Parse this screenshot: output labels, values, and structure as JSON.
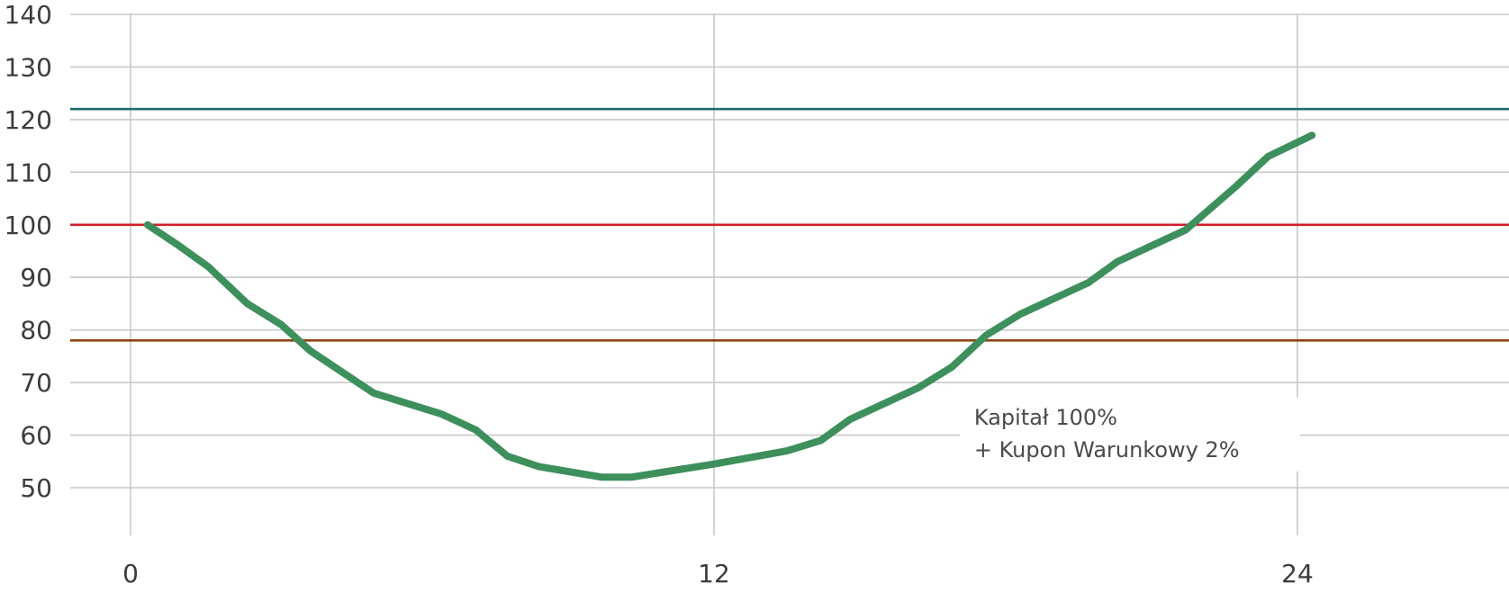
{
  "chart_data": {
    "type": "line",
    "title": "",
    "xlabel": "",
    "ylabel": "",
    "xlim": [
      -1.2,
      28.5
    ],
    "ylim": [
      50,
      140
    ],
    "x_ticks": [
      0,
      12,
      24
    ],
    "y_ticks": [
      50,
      60,
      70,
      80,
      90,
      100,
      110,
      120,
      130,
      140
    ],
    "grid": {
      "horizontal": true,
      "vertical": true
    },
    "reference_lines": [
      {
        "y": 122,
        "color": "#1e6e6a"
      },
      {
        "y": 100,
        "color": "#d0202a"
      },
      {
        "y": 78,
        "color": "#8b4513"
      }
    ],
    "series": [
      {
        "color": "#3d8f5c",
        "x": [
          0.35,
          1.0,
          1.6,
          2.4,
          3.1,
          3.7,
          5.0,
          6.4,
          7.1,
          7.75,
          8.4,
          9.7,
          10.3,
          12.0,
          13.5,
          14.2,
          14.8,
          16.2,
          16.9,
          17.6,
          18.3,
          19.7,
          20.3,
          21.7,
          22.7,
          23.4,
          24.3
        ],
        "y": [
          100,
          96,
          92,
          85,
          81,
          76,
          68,
          64,
          61,
          56,
          54,
          52,
          52,
          54.5,
          57,
          59,
          63,
          69,
          73,
          79,
          83,
          89,
          93,
          99,
          107,
          113,
          117
        ]
      }
    ],
    "annotations": [
      {
        "lines": [
          "Kapitał 100%",
          "+ Kupon Warunkowy 2%"
        ],
        "x": 17.35,
        "y": 62
      }
    ]
  }
}
